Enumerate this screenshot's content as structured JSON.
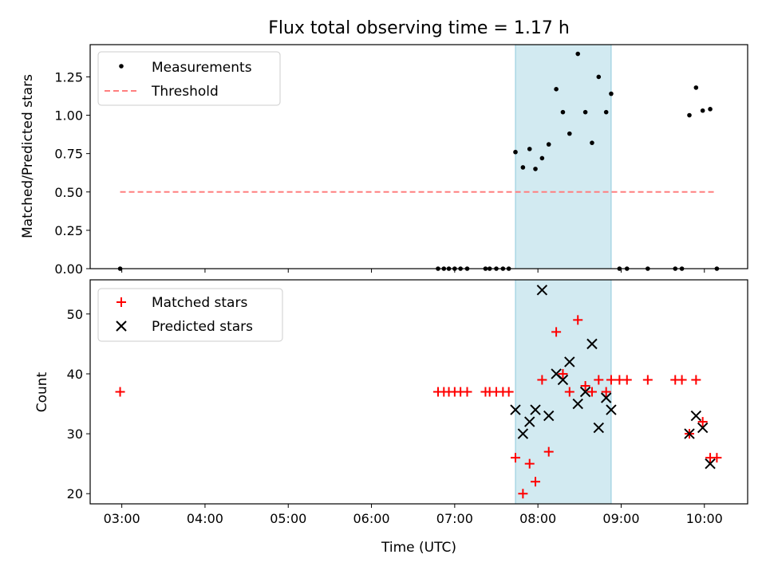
{
  "chart_data": [
    {
      "type": "scatter",
      "title": "Flux total observing time = 1.17 h",
      "xlabel": "",
      "ylabel": "Matched/Predicted stars",
      "ylim": [
        0,
        1.46
      ],
      "yticks": [
        "0.00",
        "0.25",
        "0.50",
        "0.75",
        "1.00",
        "1.25"
      ],
      "ytick_values": [
        0,
        0.25,
        0.5,
        0.75,
        1.0,
        1.25
      ],
      "legend_position": "top-left",
      "legend": [
        "Measurements",
        "Threshold"
      ],
      "highlight_span": {
        "start": 7.73,
        "end": 8.88,
        "color": "#add8e6"
      },
      "threshold": {
        "value": 0.5,
        "x_start": 2.98,
        "x_end": 10.15,
        "color": "#ff7f7f"
      },
      "series": [
        {
          "name": "Measurements",
          "color": "#000000",
          "points": [
            [
              2.98,
              0
            ],
            [
              6.8,
              0
            ],
            [
              6.87,
              0
            ],
            [
              6.93,
              0
            ],
            [
              7.0,
              0
            ],
            [
              7.07,
              0
            ],
            [
              7.15,
              0
            ],
            [
              7.37,
              0
            ],
            [
              7.42,
              0
            ],
            [
              7.5,
              0
            ],
            [
              7.58,
              0
            ],
            [
              7.65,
              0
            ],
            [
              7.73,
              0.76
            ],
            [
              7.82,
              0.66
            ],
            [
              7.9,
              0.78
            ],
            [
              7.97,
              0.65
            ],
            [
              8.05,
              0.72
            ],
            [
              8.13,
              0.81
            ],
            [
              8.22,
              1.17
            ],
            [
              8.3,
              1.02
            ],
            [
              8.38,
              0.88
            ],
            [
              8.48,
              1.4
            ],
            [
              8.57,
              1.02
            ],
            [
              8.65,
              0.82
            ],
            [
              8.73,
              1.25
            ],
            [
              8.82,
              1.02
            ],
            [
              8.88,
              1.14
            ],
            [
              8.98,
              0
            ],
            [
              9.07,
              0
            ],
            [
              9.32,
              0
            ],
            [
              9.65,
              0
            ],
            [
              9.73,
              0
            ],
            [
              9.82,
              1.0
            ],
            [
              9.9,
              1.18
            ],
            [
              9.98,
              1.03
            ],
            [
              10.07,
              1.04
            ],
            [
              10.15,
              0
            ]
          ]
        }
      ]
    },
    {
      "type": "scatter",
      "title": "",
      "xlabel": "Time (UTC)",
      "ylabel": "Count",
      "xlim": [
        2.62,
        10.52
      ],
      "ylim": [
        18.3,
        55.7
      ],
      "yticks": [
        "20",
        "30",
        "40",
        "50"
      ],
      "ytick_values": [
        20,
        30,
        40,
        50
      ],
      "xticks": [
        "03:00",
        "04:00",
        "05:00",
        "06:00",
        "07:00",
        "08:00",
        "09:00",
        "10:00"
      ],
      "xtick_values": [
        3,
        4,
        5,
        6,
        7,
        8,
        9,
        10
      ],
      "legend_position": "top-left",
      "legend": [
        "Matched stars",
        "Predicted stars"
      ],
      "highlight_span": {
        "start": 7.73,
        "end": 8.88,
        "color": "#add8e6"
      },
      "series": [
        {
          "name": "Matched stars",
          "marker": "plus",
          "color": "#ff0000",
          "points": [
            [
              2.98,
              37
            ],
            [
              6.8,
              37
            ],
            [
              6.87,
              37
            ],
            [
              6.93,
              37
            ],
            [
              7.0,
              37
            ],
            [
              7.07,
              37
            ],
            [
              7.15,
              37
            ],
            [
              7.37,
              37
            ],
            [
              7.42,
              37
            ],
            [
              7.5,
              37
            ],
            [
              7.58,
              37
            ],
            [
              7.65,
              37
            ],
            [
              7.73,
              26
            ],
            [
              7.82,
              20
            ],
            [
              7.9,
              25
            ],
            [
              7.97,
              22
            ],
            [
              8.05,
              39
            ],
            [
              8.13,
              27
            ],
            [
              8.22,
              47
            ],
            [
              8.3,
              40
            ],
            [
              8.38,
              37
            ],
            [
              8.48,
              49
            ],
            [
              8.57,
              38
            ],
            [
              8.65,
              37
            ],
            [
              8.73,
              39
            ],
            [
              8.82,
              37
            ],
            [
              8.88,
              39
            ],
            [
              8.98,
              39
            ],
            [
              9.07,
              39
            ],
            [
              9.32,
              39
            ],
            [
              9.65,
              39
            ],
            [
              9.73,
              39
            ],
            [
              9.82,
              30
            ],
            [
              9.9,
              39
            ],
            [
              9.98,
              32
            ],
            [
              10.07,
              26
            ],
            [
              10.15,
              26
            ]
          ]
        },
        {
          "name": "Predicted stars",
          "marker": "x",
          "color": "#000000",
          "points": [
            [
              7.73,
              34
            ],
            [
              7.82,
              30
            ],
            [
              7.9,
              32
            ],
            [
              7.97,
              34
            ],
            [
              8.05,
              54
            ],
            [
              8.13,
              33
            ],
            [
              8.22,
              40
            ],
            [
              8.3,
              39
            ],
            [
              8.38,
              42
            ],
            [
              8.48,
              35
            ],
            [
              8.57,
              37
            ],
            [
              8.65,
              45
            ],
            [
              8.73,
              31
            ],
            [
              8.82,
              36
            ],
            [
              8.88,
              34
            ],
            [
              9.82,
              30
            ],
            [
              9.9,
              33
            ],
            [
              9.98,
              31
            ],
            [
              10.07,
              25
            ]
          ]
        }
      ]
    }
  ]
}
